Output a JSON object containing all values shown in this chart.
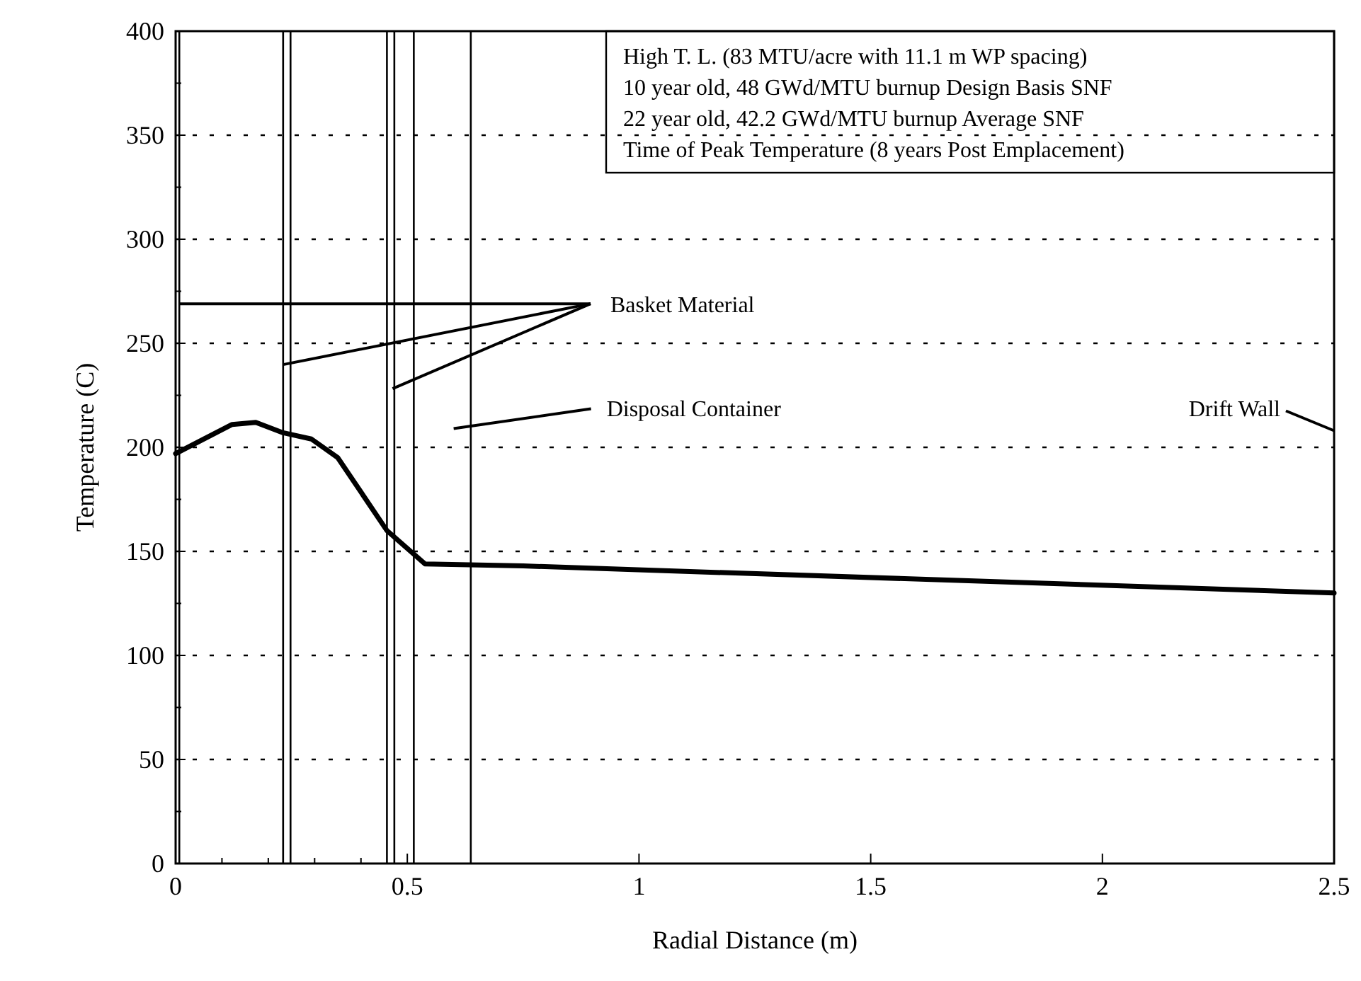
{
  "chart_data": {
    "type": "line",
    "xlabel": "Radial Distance (m)",
    "ylabel": "Temperature (C)",
    "x": [
      0,
      0.122,
      0.173,
      0.232,
      0.293,
      0.35,
      0.456,
      0.538,
      0.75,
      2.5
    ],
    "series": [
      {
        "color": "#000000",
        "values": [
          197,
          211,
          212,
          207,
          204,
          195,
          160,
          144,
          143,
          130
        ]
      }
    ],
    "xlim": [
      0,
      2.5
    ],
    "ylim": [
      0,
      400
    ],
    "xticks": [
      0,
      {
        "value": 0.1,
        "label": null
      },
      {
        "value": 0.2,
        "label": null
      },
      {
        "value": 0.3,
        "label": null
      },
      {
        "value": 0.4,
        "label": null
      },
      {
        "value": 0.5,
        "label": "0.5"
      },
      1,
      1.5,
      2,
      2.5
    ],
    "yticks": [
      0,
      {
        "value": 25,
        "label": null
      },
      50,
      {
        "value": 75,
        "label": null
      },
      100,
      {
        "value": 125,
        "label": null
      },
      150,
      {
        "value": 175,
        "label": null
      },
      200,
      {
        "value": 225,
        "label": null
      },
      250,
      {
        "value": 275,
        "label": null
      },
      300,
      {
        "value": 325,
        "label": null
      },
      350,
      {
        "value": 375,
        "label": null
      },
      400
    ],
    "grid": "y",
    "marker": "none",
    "line_style": "solid",
    "ref_lines": [
      {
        "axis": "x",
        "value": 0.008
      },
      {
        "axis": "x",
        "value": 0.232
      },
      {
        "axis": "x",
        "value": 0.248
      },
      {
        "axis": "x",
        "value": 0.456
      },
      {
        "axis": "x",
        "value": 0.472
      },
      {
        "axis": "x",
        "value": 0.514
      },
      {
        "axis": "x",
        "value": 0.637
      }
    ],
    "annotations": [
      "High T. L. (83 MTU/acre with 11.1 m WP spacing)",
      "10 year old, 48 GWd/MTU burnup Design Basis SNF",
      "22 year old, 42.2 GWd/MTU burnup Average SNF",
      "Time of Peak Temperature (8 years Post Emplacement)",
      {
        "text": "Basket Material",
        "x": 0.008,
        "y": 269
      },
      "Disposal Container",
      "Drift Wall"
    ]
  }
}
